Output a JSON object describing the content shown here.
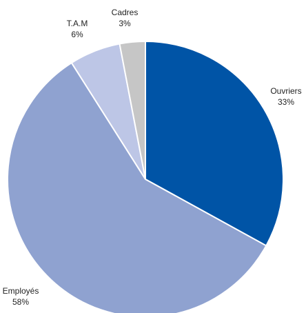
{
  "chart_data": {
    "type": "pie",
    "title": "",
    "start_angle_deg": 0,
    "direction": "clockwise",
    "slice_border": "#ffffff",
    "slices": [
      {
        "label": "Ouvriers",
        "value": 33,
        "value_label": "33%",
        "color": "#0054a6"
      },
      {
        "label": "Employés",
        "value": 58,
        "value_label": "58%",
        "color": "#8fa2d0"
      },
      {
        "label": "T.A.M",
        "value": 6,
        "value_label": "6%",
        "color": "#bdc6e6"
      },
      {
        "label": "Cadres",
        "value": 3,
        "value_label": "3%",
        "color": "#c6c6c6"
      }
    ]
  }
}
